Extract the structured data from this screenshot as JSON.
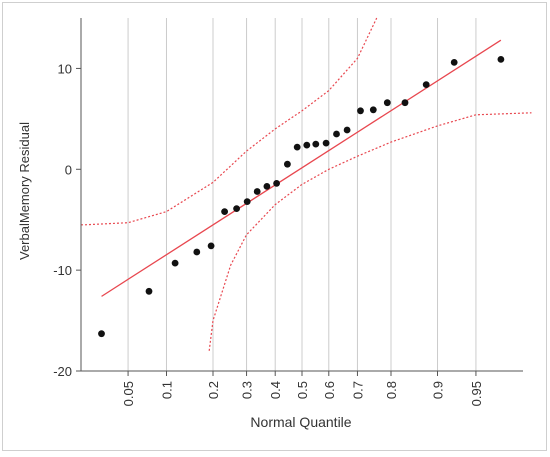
{
  "chart_data": {
    "type": "scatter",
    "title": "",
    "xlabel": "Normal Quantile",
    "ylabel": "VerbalMemory Residual",
    "ylim": [
      -20,
      15
    ],
    "y_ticks": [
      {
        "value": 10,
        "label": "10"
      },
      {
        "value": 0,
        "label": "0"
      },
      {
        "value": -10,
        "label": "-10"
      },
      {
        "value": -20,
        "label": "-20"
      }
    ],
    "x_ticks": [
      {
        "p": 0.05,
        "label": "0.05"
      },
      {
        "p": 0.1,
        "label": "0.1"
      },
      {
        "p": 0.2,
        "label": "0.2"
      },
      {
        "p": 0.3,
        "label": "0.3"
      },
      {
        "p": 0.4,
        "label": "0.4"
      },
      {
        "p": 0.5,
        "label": "0.5"
      },
      {
        "p": 0.6,
        "label": "0.6"
      },
      {
        "p": 0.7,
        "label": "0.7"
      },
      {
        "p": 0.8,
        "label": "0.8"
      },
      {
        "p": 0.9,
        "label": "0.9"
      },
      {
        "p": 0.95,
        "label": "0.95"
      }
    ],
    "x_axis_scale": "normal quantile",
    "grid": {
      "vertical": true,
      "horizontal": false
    },
    "points": [
      {
        "p": 0.029,
        "y": -16.3
      },
      {
        "p": 0.074,
        "y": -12.1
      },
      {
        "p": 0.115,
        "y": -9.3
      },
      {
        "p": 0.16,
        "y": -8.2
      },
      {
        "p": 0.195,
        "y": -7.6
      },
      {
        "p": 0.232,
        "y": -4.2
      },
      {
        "p": 0.268,
        "y": -3.9
      },
      {
        "p": 0.302,
        "y": -3.2
      },
      {
        "p": 0.336,
        "y": -2.2
      },
      {
        "p": 0.37,
        "y": -1.7
      },
      {
        "p": 0.405,
        "y": -1.4
      },
      {
        "p": 0.445,
        "y": 0.5
      },
      {
        "p": 0.482,
        "y": 2.2
      },
      {
        "p": 0.518,
        "y": 2.4
      },
      {
        "p": 0.552,
        "y": 2.5
      },
      {
        "p": 0.59,
        "y": 2.6
      },
      {
        "p": 0.628,
        "y": 3.5
      },
      {
        "p": 0.665,
        "y": 3.9
      },
      {
        "p": 0.71,
        "y": 5.8
      },
      {
        "p": 0.75,
        "y": 5.9
      },
      {
        "p": 0.79,
        "y": 6.6
      },
      {
        "p": 0.835,
        "y": 6.6
      },
      {
        "p": 0.88,
        "y": 8.4
      },
      {
        "p": 0.925,
        "y": 10.6
      },
      {
        "p": 0.97,
        "y": 10.9
      }
    ],
    "fit_line": {
      "p": [
        0.029,
        0.97
      ],
      "y": [
        -12.6,
        12.8
      ],
      "color": "#e8474f"
    },
    "confidence_band": {
      "color": "#e8474f",
      "upper": [
        {
          "p": 0.0,
          "y": -5.5
        },
        {
          "p": 0.02,
          "y": -5.5
        },
        {
          "p": 0.05,
          "y": -5.3
        },
        {
          "p": 0.1,
          "y": -4.2
        },
        {
          "p": 0.2,
          "y": -1.3
        },
        {
          "p": 0.3,
          "y": 1.8
        },
        {
          "p": 0.4,
          "y": 4.0
        },
        {
          "p": 0.5,
          "y": 5.8
        },
        {
          "p": 0.6,
          "y": 7.8
        },
        {
          "p": 0.7,
          "y": 11.0
        },
        {
          "p": 0.76,
          "y": 15.0
        }
      ],
      "lower": [
        {
          "p": 0.19,
          "y": -18.0
        },
        {
          "p": 0.2,
          "y": -15.0
        },
        {
          "p": 0.25,
          "y": -9.5
        },
        {
          "p": 0.3,
          "y": -6.5
        },
        {
          "p": 0.4,
          "y": -3.5
        },
        {
          "p": 0.5,
          "y": -1.5
        },
        {
          "p": 0.6,
          "y": 0.0
        },
        {
          "p": 0.7,
          "y": 1.3
        },
        {
          "p": 0.8,
          "y": 2.7
        },
        {
          "p": 0.9,
          "y": 4.3
        },
        {
          "p": 0.95,
          "y": 5.4
        },
        {
          "p": 0.985,
          "y": 5.6
        }
      ]
    },
    "point_color": "#111111",
    "grid_color": "#cccccc"
  }
}
